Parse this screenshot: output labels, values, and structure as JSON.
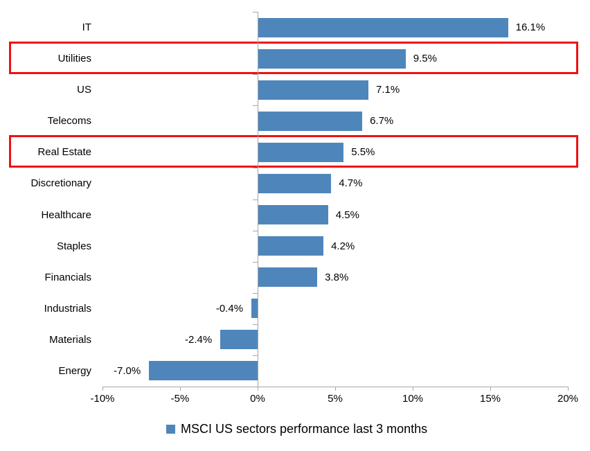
{
  "chart_data": {
    "type": "bar",
    "orientation": "horizontal",
    "categories": [
      "IT",
      "Utilities",
      "US",
      "Telecoms",
      "Real Estate",
      "Discretionary",
      "Healthcare",
      "Staples",
      "Financials",
      "Industrials",
      "Materials",
      "Energy"
    ],
    "values": [
      16.1,
      9.5,
      7.1,
      6.7,
      5.5,
      4.7,
      4.5,
      4.2,
      3.8,
      -0.4,
      -2.4,
      -7.0
    ],
    "value_labels": [
      "16.1%",
      "9.5%",
      "7.1%",
      "6.7%",
      "5.5%",
      "4.7%",
      "4.5%",
      "4.2%",
      "3.8%",
      "-0.4%",
      "-2.4%",
      "-7.0%"
    ],
    "highlighted_categories": [
      "Utilities",
      "Real Estate"
    ],
    "xlim": [
      -10,
      20
    ],
    "x_ticks": [
      {
        "value": -10,
        "label": "-10%"
      },
      {
        "value": -5,
        "label": "-5%"
      },
      {
        "value": 0,
        "label": "0%"
      },
      {
        "value": 5,
        "label": "5%"
      },
      {
        "value": 10,
        "label": "10%"
      },
      {
        "value": 15,
        "label": "15%"
      },
      {
        "value": 20,
        "label": "20%"
      }
    ],
    "grid": false,
    "bar_color": "#4e86bb",
    "highlight_color": "#ee1111",
    "axis_color": "#a6a6a6",
    "legend": {
      "label": "MSCI US sectors performance last 3 months",
      "position": "bottom"
    }
  }
}
